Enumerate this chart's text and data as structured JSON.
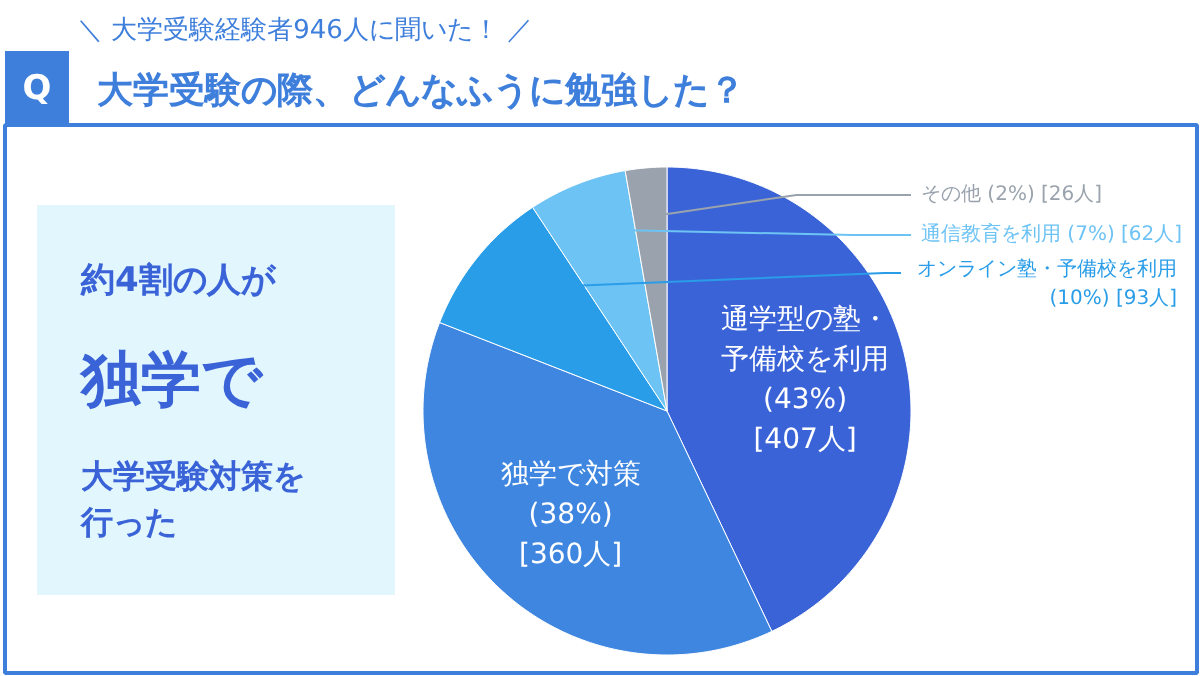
{
  "chart_data": {
    "type": "pie",
    "title": "大学受験の際、どんなふうに勉強した？",
    "subtitle": "＼ 大学受験経験者946人に聞いた！ ／",
    "categories": [
      "通学型の塾・予備校を利用",
      "独学で対策",
      "オンライン塾・予備校を利用",
      "通信教育を利用",
      "その他"
    ],
    "values": [
      407,
      360,
      93,
      62,
      26
    ],
    "colors": [
      "#3a63d8",
      "#3f86e0",
      "#2a9de8",
      "#6ec3f5",
      "#9aa3ad"
    ],
    "value_labels": [
      "(43%) [407人]",
      "(38%) [360人]",
      "(10%) [93人]",
      "(7%) [62人]",
      "(2%) [26人]"
    ],
    "annotations": [
      "Q",
      "約4割の人が",
      "独学で",
      "大学受験対策を行った"
    ]
  }
}
